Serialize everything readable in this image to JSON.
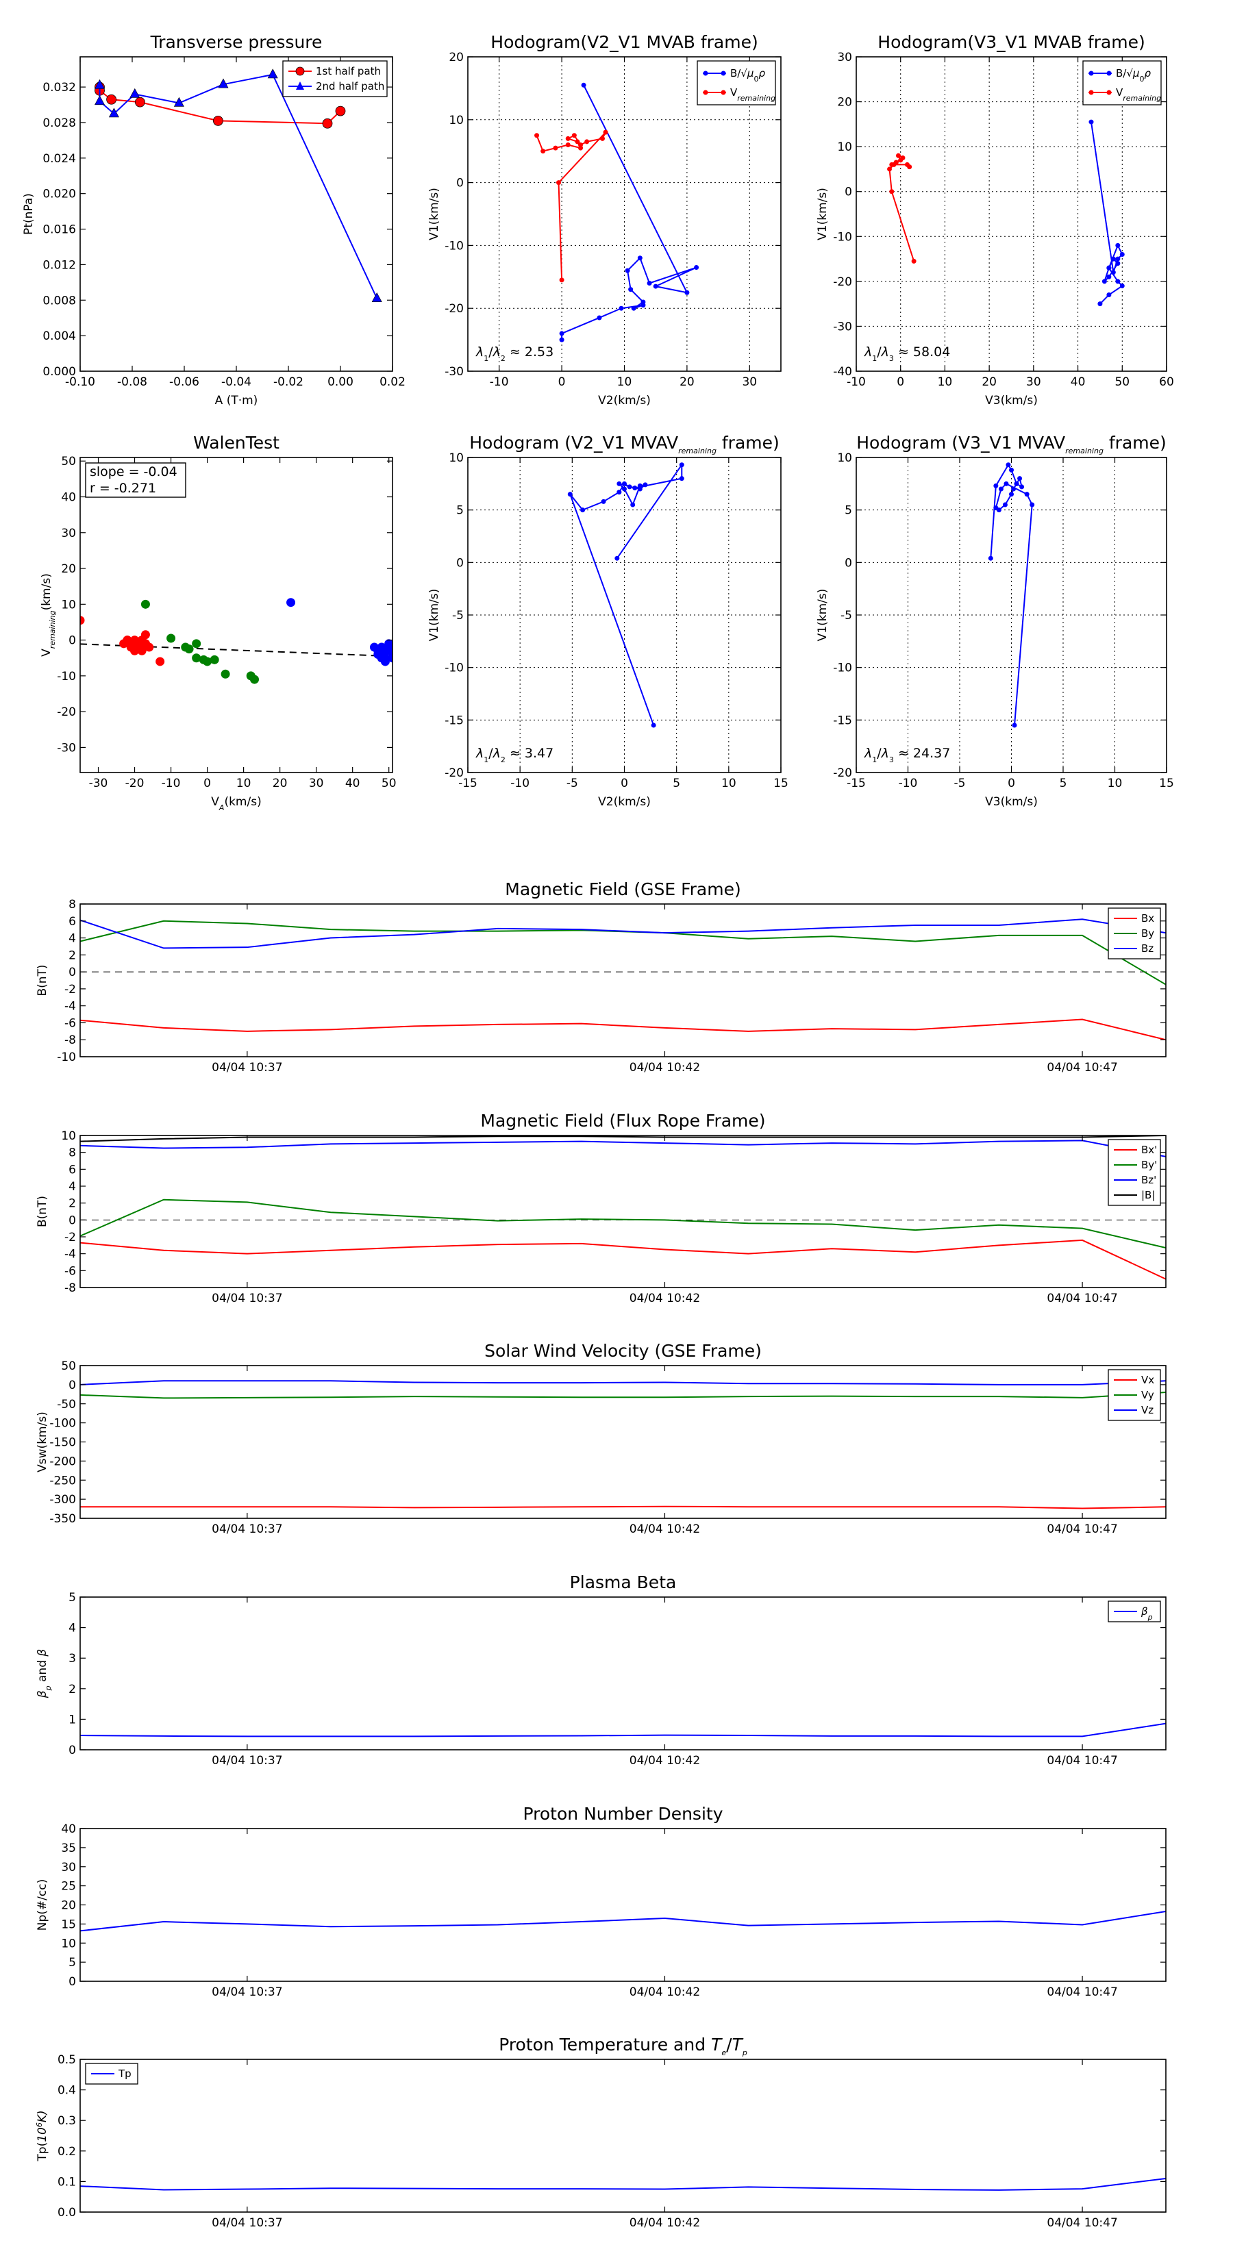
{
  "chart_data": [
    {
      "type": "line",
      "title": "Transverse pressure",
      "xlabel": "A (T·m)",
      "ylabel": "Pt(nPa)",
      "xlim": [
        -0.1,
        0.02
      ],
      "ylim": [
        0.0,
        0.0354
      ],
      "xticks": [
        "-0.10",
        "-0.08",
        "-0.06",
        "-0.04",
        "-0.02",
        "0.00",
        "0.02"
      ],
      "yticks": [
        "0.000",
        "0.004",
        "0.008",
        "0.012",
        "0.016",
        "0.020",
        "0.024",
        "0.028",
        "0.032"
      ],
      "legend": "top-right",
      "series": [
        {
          "name": "1st half path",
          "color": "#ff0000",
          "marker": "circle",
          "x": [
            -0.0925,
            -0.0925,
            -0.088,
            -0.077,
            -0.047,
            -0.005,
            0.0
          ],
          "y": [
            0.032,
            0.0316,
            0.0306,
            0.0303,
            0.0282,
            0.0279,
            0.0293
          ]
        },
        {
          "name": "2nd half path",
          "color": "#0000ff",
          "marker": "triangle",
          "x": [
            -0.0925,
            -0.0925,
            -0.087,
            -0.079,
            -0.062,
            -0.045,
            -0.026,
            0.014
          ],
          "y": [
            0.0322,
            0.0304,
            0.029,
            0.0312,
            0.0302,
            0.0323,
            0.0334,
            0.0082
          ]
        }
      ]
    },
    {
      "type": "line",
      "title": "Hodogram(V2_V1 MVAB frame)",
      "xlabel": "V2(km/s)",
      "ylabel": "V1(km/s)",
      "xlim": [
        -15,
        35
      ],
      "ylim": [
        -30,
        20
      ],
      "xticks": [
        "-10",
        "0",
        "10",
        "20",
        "30"
      ],
      "yticks": [
        "-30",
        "-20",
        "-10",
        "0",
        "10",
        "20"
      ],
      "legend": "top-right",
      "annotation": "λ1/λ2 ≈ 2.53",
      "series": [
        {
          "name": "B/√μ0ρ",
          "color": "#0000ff",
          "x": [
            3.5,
            20,
            15,
            21.5,
            14,
            12.5,
            10.5,
            11,
            13,
            11.5,
            13,
            9.5,
            6,
            0,
            0
          ],
          "y": [
            15.5,
            -17.5,
            -16.5,
            -13.5,
            -16,
            -12,
            -14,
            -17,
            -19,
            -20,
            -19.5,
            -20,
            -21.5,
            -24,
            -25
          ]
        },
        {
          "name": "V_remaining",
          "color": "#ff0000",
          "x": [
            0,
            -0.5,
            7,
            6.5,
            4,
            3,
            2,
            1,
            2.5,
            3,
            1,
            -1,
            -3,
            -4
          ],
          "y": [
            -15.5,
            0,
            8,
            7,
            6.5,
            6,
            7.5,
            7,
            6.5,
            5.5,
            6,
            5.5,
            5,
            7.5
          ]
        }
      ]
    },
    {
      "type": "line",
      "title": "Hodogram(V3_V1 MVAB frame)",
      "xlabel": "V3(km/s)",
      "ylabel": "V1(km/s)",
      "xlim": [
        -10,
        60
      ],
      "ylim": [
        -40,
        30
      ],
      "xticks": [
        "-10",
        "0",
        "10",
        "20",
        "30",
        "40",
        "50",
        "60"
      ],
      "yticks": [
        "-40",
        "-30",
        "-20",
        "-10",
        "0",
        "10",
        "20",
        "30"
      ],
      "legend": "top-right",
      "annotation": "λ1/λ3 ≈ 58.04",
      "series": [
        {
          "name": "B/√μ0ρ",
          "color": "#0000ff",
          "x": [
            43,
            48,
            49,
            50,
            49,
            47,
            48,
            49,
            47,
            46,
            47,
            49,
            50,
            47,
            45
          ],
          "y": [
            15.5,
            -18,
            -15,
            -14,
            -12,
            -17,
            -15,
            -16,
            -19,
            -20,
            -17,
            -20,
            -21,
            -23,
            -25
          ]
        },
        {
          "name": "V_remaining",
          "color": "#ff0000",
          "x": [
            3,
            -2,
            -2.5,
            -1.5,
            -1,
            0,
            -0.5,
            0.5,
            -1,
            -2,
            1.5,
            2
          ],
          "y": [
            -15.5,
            0,
            5,
            6,
            6.5,
            7,
            8,
            7.5,
            6.5,
            6,
            6,
            5.5
          ]
        }
      ]
    },
    {
      "type": "scatter",
      "title": "WalenTest",
      "xlabel": "V_A(km/s)",
      "ylabel": "V_remaining(km/s)",
      "xlim": [
        -35,
        51
      ],
      "ylim": [
        -37,
        51
      ],
      "xticks": [
        "-30",
        "-20",
        "-10",
        "0",
        "10",
        "20",
        "30",
        "40",
        "50"
      ],
      "yticks": [
        "-30",
        "-20",
        "-10",
        "0",
        "10",
        "20",
        "30",
        "40",
        "50"
      ],
      "legend": "top-left",
      "legend_lines": [
        "slope = -0.04",
        "r = -0.271"
      ],
      "fit_line": {
        "slope": -0.04,
        "intercept": -2.5
      },
      "series": [
        {
          "color": "#ff0000",
          "x": [
            -35,
            -22,
            -21,
            -20,
            -19,
            -18,
            -20,
            -21,
            -22,
            -19,
            -18,
            -17,
            -16,
            -17,
            -20,
            -13,
            -18,
            -19,
            -21,
            -17,
            -23
          ],
          "y": [
            5.5,
            0,
            -1,
            0,
            -1,
            -2,
            -3,
            -1,
            0,
            -2,
            -3,
            1.5,
            -2,
            -1,
            -2,
            -6,
            0,
            -1,
            -2,
            -1,
            -1
          ]
        },
        {
          "color": "#008000",
          "x": [
            -17,
            -10,
            -6,
            -3,
            -3,
            -1,
            0,
            2,
            -5,
            5,
            12,
            13
          ],
          "y": [
            10,
            0.5,
            -2,
            -1,
            -5,
            -5.5,
            -6,
            -5.5,
            -2.5,
            -9.5,
            -10,
            -11
          ]
        },
        {
          "color": "#0000ff",
          "x": [
            23,
            46,
            47,
            48,
            49,
            50,
            49,
            48,
            50,
            47,
            49,
            50,
            48,
            51
          ],
          "y": [
            10.5,
            -2,
            -3,
            -4,
            -5,
            -3,
            -6,
            -5,
            -2,
            -4,
            -3,
            -1,
            -2,
            -5
          ]
        }
      ]
    },
    {
      "type": "line",
      "title": "Hodogram (V2_V1 MVAV_remaining frame)",
      "xlabel": "V2(km/s)",
      "ylabel": "V1(km/s)",
      "xlim": [
        -15,
        15
      ],
      "ylim": [
        -20,
        10
      ],
      "xticks": [
        "-15",
        "-10",
        "-5",
        "0",
        "5",
        "10",
        "15"
      ],
      "yticks": [
        "-20",
        "-15",
        "-10",
        "-5",
        "0",
        "5",
        "10"
      ],
      "annotation": "λ1/λ2 ≈ 3.47",
      "series": [
        {
          "color": "#0000ff",
          "x": [
            2.8,
            -5.2,
            -4,
            -2,
            -0.5,
            0,
            0.5,
            1.5,
            2,
            1.5,
            0.8,
            0,
            -0.5,
            1,
            5.5,
            5.5,
            -0.7
          ],
          "y": [
            -15.5,
            6.5,
            5,
            5.8,
            6.7,
            7.5,
            7.2,
            7,
            7.4,
            7.3,
            5.5,
            7,
            7.5,
            7.1,
            8,
            9.3,
            0.4
          ]
        }
      ]
    },
    {
      "type": "line",
      "title": "Hodogram (V3_V1 MVAV_remaining frame)",
      "xlabel": "V3(km/s)",
      "ylabel": "V1(km/s)",
      "xlim": [
        -15,
        15
      ],
      "ylim": [
        -20,
        10
      ],
      "xticks": [
        "-15",
        "-10",
        "-5",
        "0",
        "5",
        "10",
        "15"
      ],
      "yticks": [
        "-20",
        "-15",
        "-10",
        "-5",
        "0",
        "5",
        "10"
      ],
      "annotation": "λ1/λ3 ≈ 24.37",
      "series": [
        {
          "color": "#0000ff",
          "x": [
            0.3,
            2,
            1.5,
            -0.5,
            -1,
            -1.5,
            -1.2,
            -0.6,
            0,
            0.2,
            0.5,
            0.8,
            1,
            0.5,
            0,
            -0.3,
            -1.5,
            -2
          ],
          "y": [
            -15.5,
            5.5,
            6.5,
            7.5,
            7,
            5.2,
            5,
            5.5,
            6.5,
            7,
            7.5,
            8,
            7.2,
            7.5,
            8.8,
            9.3,
            7.3,
            0.4
          ]
        }
      ]
    },
    {
      "type": "line",
      "title": "Magnetic Field (GSE Frame)",
      "ylabel": "B(nT)",
      "xlim": [
        0,
        13
      ],
      "ylim": [
        -10,
        8
      ],
      "yticks": [
        "-10",
        "-8",
        "-6",
        "-4",
        "-2",
        "0",
        "2",
        "4",
        "6",
        "8"
      ],
      "xticks": [
        {
          "x": 2,
          "label": "04/04 10:37"
        },
        {
          "x": 7,
          "label": "04/04 10:42"
        },
        {
          "x": 12,
          "label": "04/04 10:47"
        }
      ],
      "zero_line": true,
      "legend": "top-right",
      "x": [
        0,
        1,
        2,
        3,
        4,
        5,
        6,
        7,
        8,
        9,
        10,
        11,
        12,
        13
      ],
      "series": [
        {
          "name": "Bx",
          "color": "#ff0000",
          "values": [
            -5.7,
            -6.6,
            -7.0,
            -6.8,
            -6.4,
            -6.2,
            -6.1,
            -6.6,
            -7.0,
            -6.7,
            -6.8,
            -6.2,
            -5.6,
            -8.0
          ]
        },
        {
          "name": "By",
          "color": "#008000",
          "values": [
            3.6,
            6.0,
            5.7,
            5.0,
            4.8,
            4.8,
            4.9,
            4.6,
            3.9,
            4.2,
            3.6,
            4.3,
            4.3,
            -1.5
          ]
        },
        {
          "name": "Bz",
          "color": "#0000ff",
          "values": [
            6.1,
            2.8,
            2.9,
            4.0,
            4.4,
            5.1,
            5.0,
            4.6,
            4.8,
            5.2,
            5.5,
            5.5,
            6.2,
            4.6
          ]
        }
      ]
    },
    {
      "type": "line",
      "title": "Magnetic Field (Flux Rope Frame)",
      "ylabel": "B(nT)",
      "xlim": [
        0,
        13
      ],
      "ylim": [
        -8,
        10
      ],
      "yticks": [
        "-8",
        "-6",
        "-4",
        "-2",
        "0",
        "2",
        "4",
        "6",
        "8",
        "10"
      ],
      "xticks": [
        {
          "x": 2,
          "label": "04/04 10:37"
        },
        {
          "x": 7,
          "label": "04/04 10:42"
        },
        {
          "x": 12,
          "label": "04/04 10:47"
        }
      ],
      "zero_line": true,
      "legend": "top-right",
      "x": [
        0,
        1,
        2,
        3,
        4,
        5,
        6,
        7,
        8,
        9,
        10,
        11,
        12,
        13
      ],
      "series": [
        {
          "name": "Bx'",
          "color": "#ff0000",
          "values": [
            -2.7,
            -3.6,
            -4.0,
            -3.6,
            -3.2,
            -2.9,
            -2.8,
            -3.5,
            -4.0,
            -3.4,
            -3.8,
            -3.0,
            -2.4,
            -7.0
          ]
        },
        {
          "name": "By'",
          "color": "#008000",
          "values": [
            -1.9,
            2.4,
            2.1,
            0.9,
            0.4,
            -0.1,
            0.1,
            0.0,
            -0.4,
            -0.5,
            -1.2,
            -0.6,
            -1.0,
            -3.3
          ]
        },
        {
          "name": "Bz'",
          "color": "#0000ff",
          "values": [
            8.8,
            8.5,
            8.6,
            9.0,
            9.1,
            9.2,
            9.3,
            9.1,
            8.9,
            9.1,
            9.0,
            9.3,
            9.4,
            7.5
          ]
        },
        {
          "name": "|B|",
          "color": "#000000",
          "values": [
            9.3,
            9.6,
            9.8,
            9.8,
            9.8,
            9.9,
            9.9,
            9.8,
            9.8,
            9.8,
            9.8,
            9.8,
            9.8,
            10.0
          ]
        }
      ]
    },
    {
      "type": "line",
      "title": "Solar Wind Velocity (GSE Frame)",
      "ylabel": "Vsw(km/s)",
      "xlim": [
        0,
        13
      ],
      "ylim": [
        -350,
        50
      ],
      "yticks": [
        "-350",
        "-300",
        "-250",
        "-200",
        "-150",
        "-100",
        "-50",
        "0",
        "50"
      ],
      "xticks": [
        {
          "x": 2,
          "label": "04/04 10:37"
        },
        {
          "x": 7,
          "label": "04/04 10:42"
        },
        {
          "x": 12,
          "label": "04/04 10:47"
        }
      ],
      "legend": "top-right",
      "x": [
        0,
        1,
        2,
        3,
        4,
        5,
        6,
        7,
        8,
        9,
        10,
        11,
        12,
        13
      ],
      "series": [
        {
          "name": "Vx",
          "color": "#ff0000",
          "values": [
            -320,
            -320,
            -320,
            -320,
            -322,
            -321,
            -320,
            -319,
            -320,
            -320,
            -320,
            -320,
            -324,
            -320
          ]
        },
        {
          "name": "Vy",
          "color": "#008000",
          "values": [
            -27,
            -35,
            -34,
            -33,
            -31,
            -32,
            -33,
            -33,
            -31,
            -30,
            -31,
            -31,
            -34,
            -20
          ]
        },
        {
          "name": "Vz",
          "color": "#0000ff",
          "values": [
            0,
            10,
            10,
            10,
            6,
            5,
            5,
            6,
            3,
            3,
            2,
            0,
            0,
            10
          ]
        }
      ]
    },
    {
      "type": "line",
      "title": "Plasma Beta",
      "ylabel": "β_p and β",
      "xlim": [
        0,
        13
      ],
      "ylim": [
        0,
        5
      ],
      "yticks": [
        "0",
        "1",
        "2",
        "3",
        "4",
        "5"
      ],
      "xticks": [
        {
          "x": 2,
          "label": "04/04 10:37"
        },
        {
          "x": 7,
          "label": "04/04 10:42"
        },
        {
          "x": 12,
          "label": "04/04 10:47"
        }
      ],
      "legend": "top-right",
      "x": [
        0,
        1,
        2,
        3,
        4,
        5,
        6,
        7,
        8,
        9,
        10,
        11,
        12,
        13
      ],
      "series": [
        {
          "name": "β_p",
          "color": "#0000ff",
          "values": [
            0.47,
            0.45,
            0.44,
            0.44,
            0.44,
            0.45,
            0.46,
            0.48,
            0.47,
            0.45,
            0.45,
            0.44,
            0.44,
            0.86
          ]
        }
      ]
    },
    {
      "type": "line",
      "title": "Proton Number Density",
      "ylabel": "Np(#/cc)",
      "xlim": [
        0,
        13
      ],
      "ylim": [
        0,
        40
      ],
      "yticks": [
        "0",
        "5",
        "10",
        "15",
        "20",
        "25",
        "30",
        "35",
        "40"
      ],
      "xticks": [
        {
          "x": 2,
          "label": "04/04 10:37"
        },
        {
          "x": 7,
          "label": "04/04 10:42"
        },
        {
          "x": 12,
          "label": "04/04 10:47"
        }
      ],
      "x": [
        0,
        1,
        2,
        3,
        4,
        5,
        6,
        7,
        8,
        9,
        10,
        11,
        12,
        13
      ],
      "series": [
        {
          "color": "#0000ff",
          "values": [
            13.2,
            15.6,
            15.0,
            14.3,
            14.5,
            14.8,
            15.6,
            16.5,
            14.6,
            15.0,
            15.4,
            15.7,
            14.8,
            18.3
          ]
        }
      ]
    },
    {
      "type": "line",
      "title": "Proton Temperature and T_e/T_p",
      "ylabel": "Tp(10^6 K)",
      "xlim": [
        0,
        13
      ],
      "ylim": [
        0,
        0.5
      ],
      "yticks": [
        "0.0",
        "0.1",
        "0.2",
        "0.3",
        "0.4",
        "0.5"
      ],
      "xticks": [
        {
          "x": 2,
          "label": "04/04 10:37"
        },
        {
          "x": 7,
          "label": "04/04 10:42"
        },
        {
          "x": 12,
          "label": "04/04 10:47"
        }
      ],
      "legend": "top-left",
      "x": [
        0,
        1,
        2,
        3,
        4,
        5,
        6,
        7,
        8,
        9,
        10,
        11,
        12,
        13
      ],
      "series": [
        {
          "name": "Tp",
          "color": "#0000ff",
          "values": [
            0.085,
            0.073,
            0.075,
            0.078,
            0.077,
            0.076,
            0.076,
            0.075,
            0.082,
            0.078,
            0.074,
            0.072,
            0.076,
            0.11
          ]
        }
      ]
    }
  ]
}
